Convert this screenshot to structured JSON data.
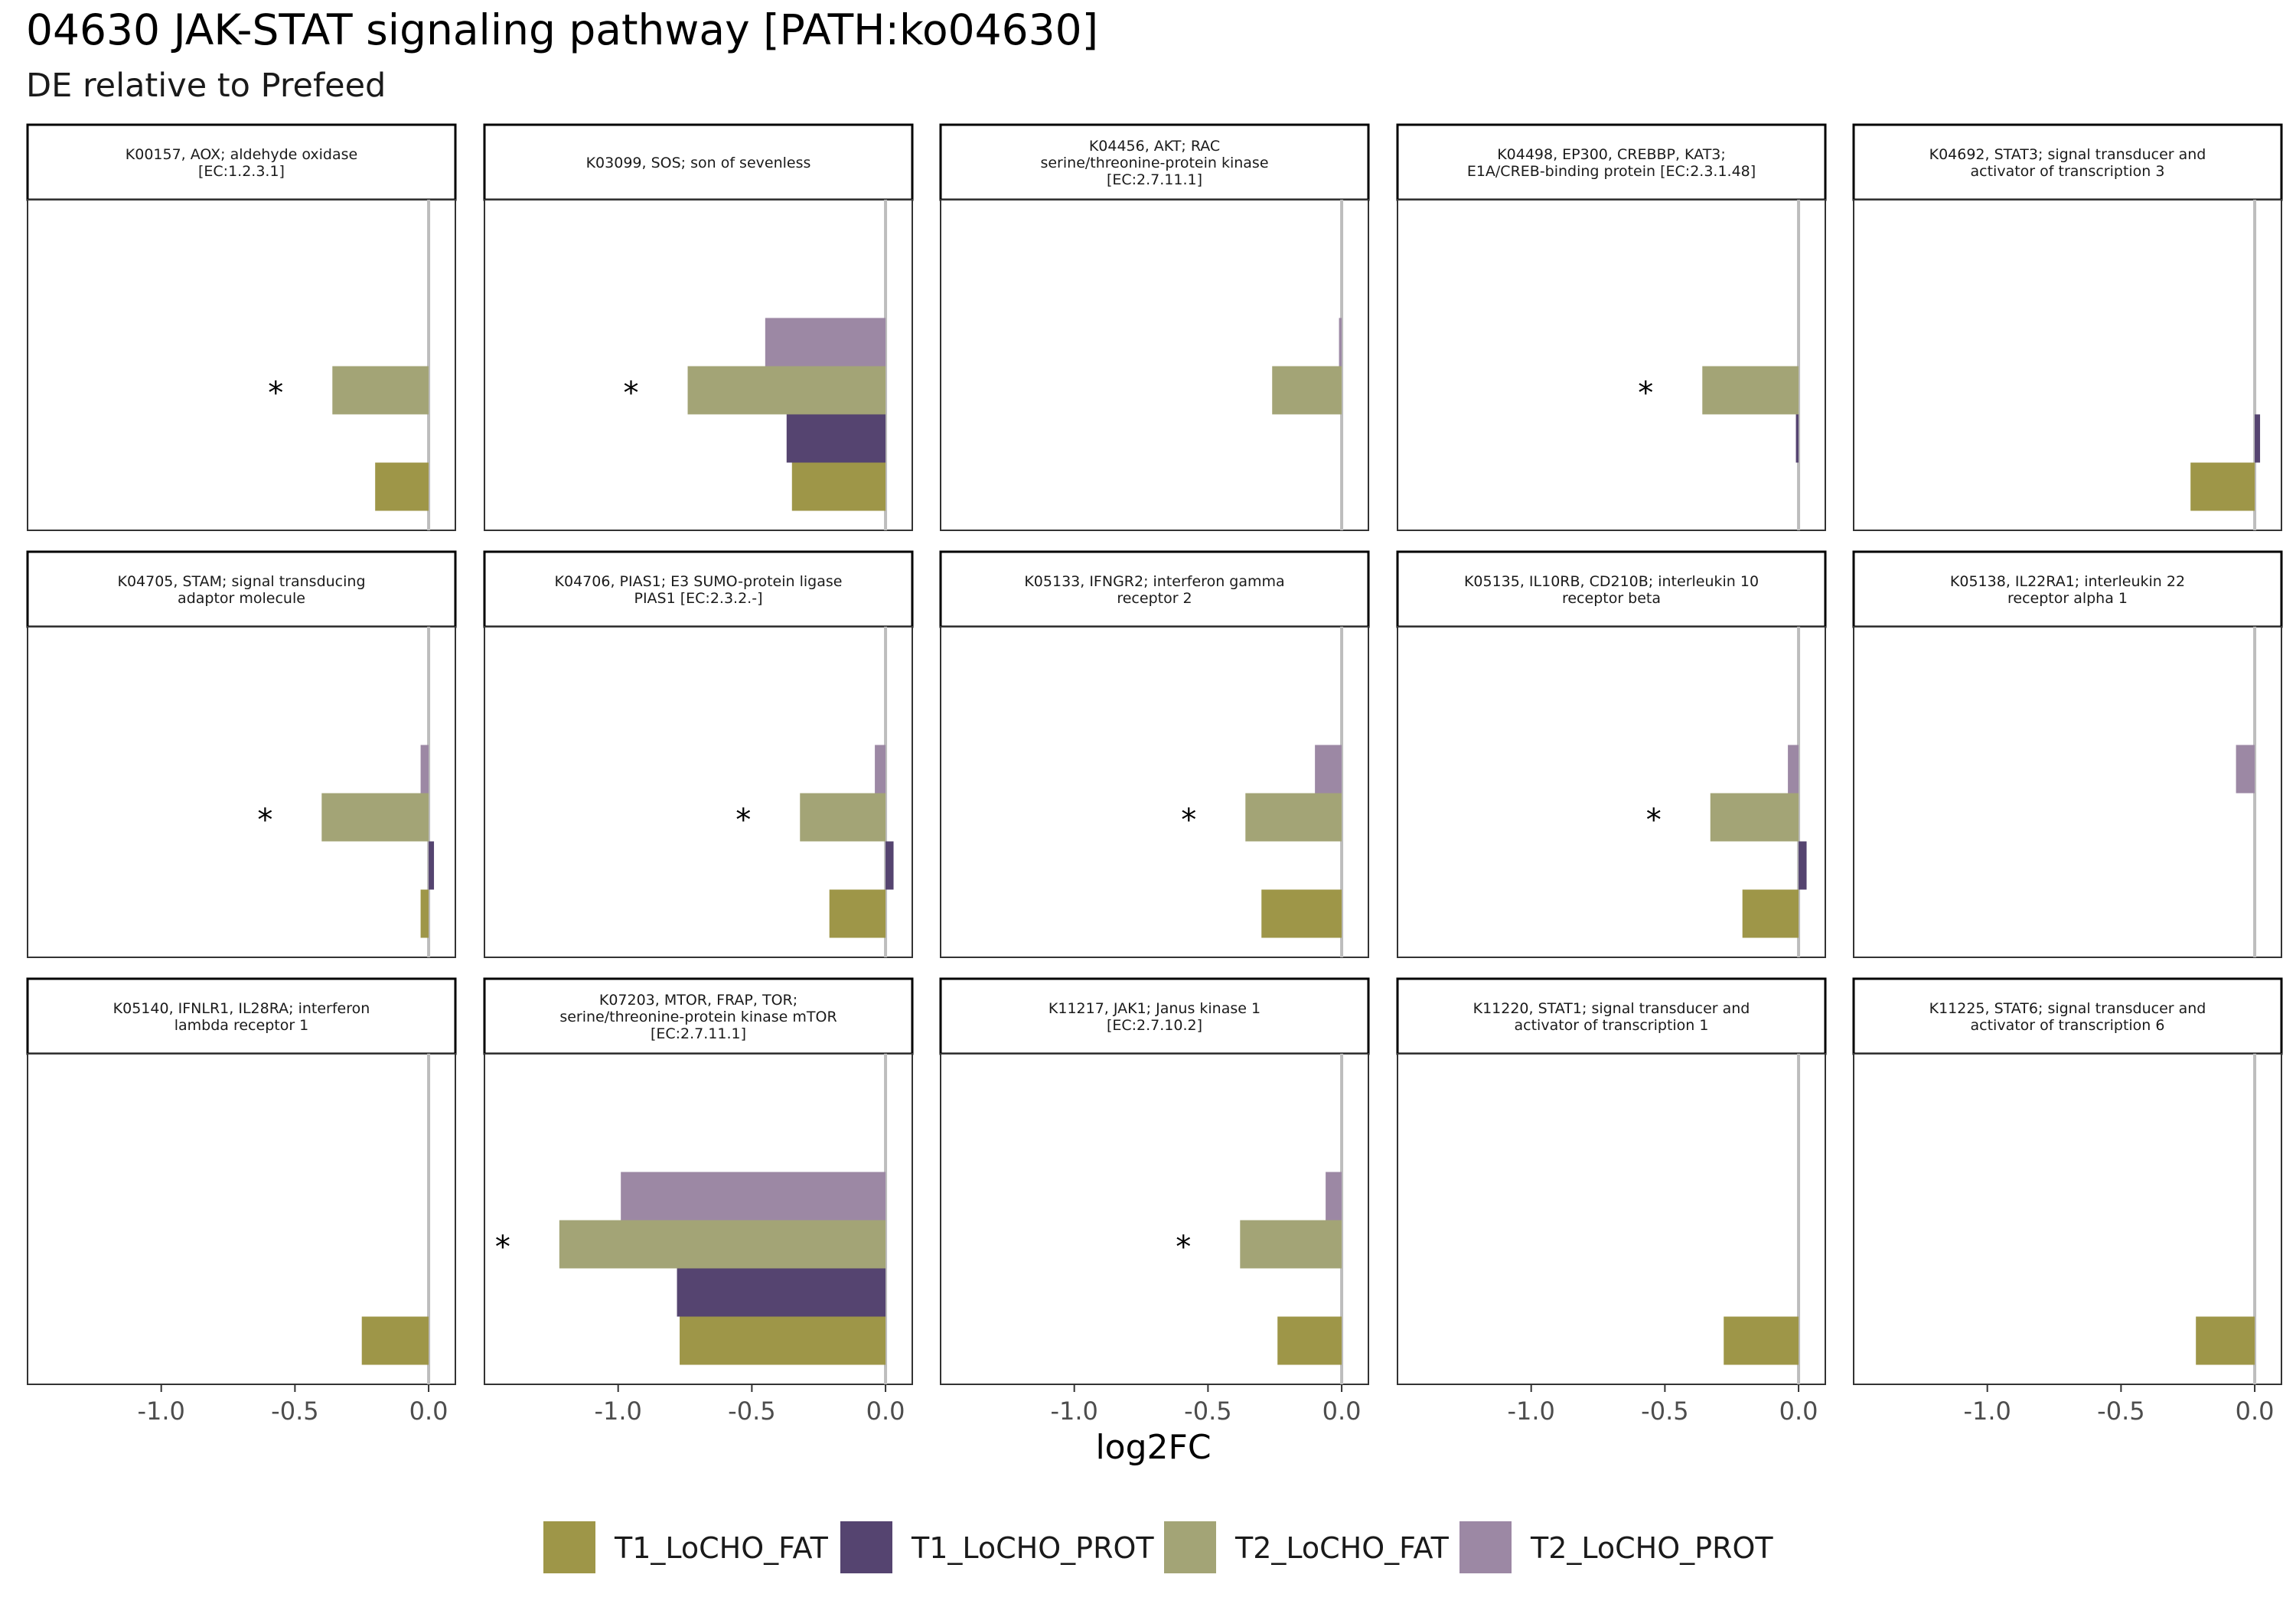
{
  "chart_data": {
    "type": "bar",
    "orientation": "horizontal",
    "title": "04630 JAK-STAT signaling pathway [PATH:ko04630]",
    "subtitle": "DE relative to Prefeed",
    "xlabel": "log2FC",
    "xlim": [
      -1.5,
      0.1
    ],
    "xticks": [
      -1.0,
      -0.5,
      0.0
    ],
    "xtick_labels": [
      "-1.0",
      "-0.5",
      "0.0"
    ],
    "facet_layout": "3 rows x 5 columns",
    "legend_position": "bottom",
    "reference_line": 0,
    "significance_marker": "*",
    "series": [
      {
        "name": "T1_LoCHO_FAT",
        "color": "#9e9648"
      },
      {
        "name": "T1_LoCHO_PROT",
        "color": "#554470"
      },
      {
        "name": "T2_LoCHO_FAT",
        "color": "#a3a476"
      },
      {
        "name": "T2_LoCHO_PROT",
        "color": "#9c88a4"
      }
    ],
    "panels": [
      {
        "label": "K00157, AOX; aldehyde oxidase\n[EC:1.2.3.1]",
        "values": {
          "T2_LoCHO_FAT": -0.36,
          "T1_LoCHO_FAT": -0.2
        },
        "significant": [
          "T2_LoCHO_FAT"
        ]
      },
      {
        "label": "K03099, SOS; son of sevenless",
        "values": {
          "T2_LoCHO_PROT": -0.45,
          "T2_LoCHO_FAT": -0.74,
          "T1_LoCHO_PROT": -0.37,
          "T1_LoCHO_FAT": -0.35
        },
        "significant": [
          "T2_LoCHO_FAT"
        ]
      },
      {
        "label": "K04456, AKT; RAC\nserine/threonine-protein kinase\n[EC:2.7.11.1]",
        "values": {
          "T2_LoCHO_PROT": -0.01,
          "T2_LoCHO_FAT": -0.26
        },
        "significant": []
      },
      {
        "label": "K04498, EP300, CREBBP, KAT3;\nE1A/CREB-binding protein [EC:2.3.1.48]",
        "values": {
          "T2_LoCHO_FAT": -0.36,
          "T1_LoCHO_PROT": -0.01
        },
        "significant": [
          "T2_LoCHO_FAT"
        ]
      },
      {
        "label": "K04692, STAT3; signal transducer and\nactivator of transcription 3",
        "values": {
          "T1_LoCHO_PROT": 0.02,
          "T1_LoCHO_FAT": -0.24
        },
        "significant": []
      },
      {
        "label": "K04705, STAM; signal transducing\nadaptor molecule",
        "values": {
          "T2_LoCHO_PROT": -0.03,
          "T2_LoCHO_FAT": -0.4,
          "T1_LoCHO_PROT": 0.02,
          "T1_LoCHO_FAT": -0.03
        },
        "significant": [
          "T2_LoCHO_FAT"
        ]
      },
      {
        "label": "K04706, PIAS1; E3 SUMO-protein ligase\nPIAS1 [EC:2.3.2.-]",
        "values": {
          "T2_LoCHO_PROT": -0.04,
          "T2_LoCHO_FAT": -0.32,
          "T1_LoCHO_PROT": 0.03,
          "T1_LoCHO_FAT": -0.21
        },
        "significant": [
          "T2_LoCHO_FAT"
        ]
      },
      {
        "label": "K05133, IFNGR2; interferon gamma\nreceptor 2",
        "values": {
          "T2_LoCHO_PROT": -0.1,
          "T2_LoCHO_FAT": -0.36,
          "T1_LoCHO_FAT": -0.3
        },
        "significant": [
          "T2_LoCHO_FAT"
        ]
      },
      {
        "label": "K05135, IL10RB, CD210B; interleukin 10\nreceptor beta",
        "values": {
          "T2_LoCHO_PROT": -0.04,
          "T2_LoCHO_FAT": -0.33,
          "T1_LoCHO_PROT": 0.03,
          "T1_LoCHO_FAT": -0.21
        },
        "significant": [
          "T2_LoCHO_FAT"
        ]
      },
      {
        "label": "K05138, IL22RA1; interleukin 22\nreceptor alpha 1",
        "values": {
          "T2_LoCHO_PROT": -0.07
        },
        "significant": []
      },
      {
        "label": "K05140, IFNLR1, IL28RA; interferon\nlambda receptor 1",
        "values": {
          "T1_LoCHO_FAT": -0.25
        },
        "significant": []
      },
      {
        "label": "K07203, MTOR, FRAP, TOR;\nserine/threonine-protein kinase mTOR\n[EC:2.7.11.1]",
        "values": {
          "T2_LoCHO_PROT": -0.99,
          "T2_LoCHO_FAT": -1.22,
          "T1_LoCHO_PROT": -0.78,
          "T1_LoCHO_FAT": -0.77
        },
        "significant": [
          "T2_LoCHO_FAT"
        ]
      },
      {
        "label": "K11217, JAK1; Janus kinase 1\n[EC:2.7.10.2]",
        "values": {
          "T2_LoCHO_PROT": -0.06,
          "T2_LoCHO_FAT": -0.38,
          "T1_LoCHO_FAT": -0.24
        },
        "significant": [
          "T2_LoCHO_FAT"
        ]
      },
      {
        "label": "K11220, STAT1; signal transducer and\nactivator of transcription 1",
        "values": {
          "T1_LoCHO_FAT": -0.28
        },
        "significant": []
      },
      {
        "label": "K11225, STAT6; signal transducer and\nactivator of transcription 6",
        "values": {
          "T1_LoCHO_FAT": -0.22
        },
        "significant": []
      }
    ]
  }
}
